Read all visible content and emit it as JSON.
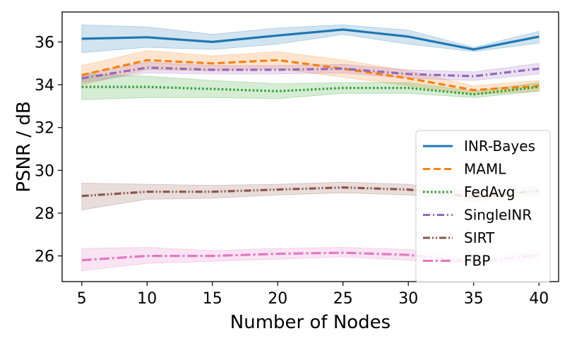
{
  "chart_data": {
    "type": "line",
    "title": "",
    "xlabel": "Number of Nodes",
    "ylabel": "PSNR / dB",
    "x": [
      5,
      10,
      15,
      20,
      25,
      30,
      35,
      40
    ],
    "xticks": [
      5,
      10,
      15,
      20,
      25,
      30,
      35,
      40
    ],
    "yticks": [
      26,
      28,
      30,
      32,
      34,
      36
    ],
    "xlim": [
      3.5,
      41.5
    ],
    "ylim": [
      24.8,
      37.4
    ],
    "legend_position": "center-right",
    "series": [
      {
        "name": "INR-Bayes",
        "color": "#1f77b4",
        "dash": "solid",
        "values": [
          36.15,
          36.22,
          36.0,
          36.3,
          36.58,
          36.25,
          35.65,
          36.25
        ],
        "lower": [
          35.5,
          35.75,
          35.65,
          35.9,
          36.35,
          35.9,
          35.55,
          35.95
        ],
        "upper": [
          36.8,
          36.7,
          36.35,
          36.65,
          36.8,
          36.55,
          35.75,
          36.5
        ]
      },
      {
        "name": "MAML",
        "color": "#ff7f0e",
        "dash": "dashed",
        "values": [
          34.45,
          35.15,
          35.0,
          35.15,
          34.75,
          34.3,
          33.75,
          33.95
        ],
        "lower": [
          34.0,
          34.7,
          34.65,
          34.75,
          34.35,
          33.95,
          33.55,
          33.7
        ],
        "upper": [
          34.9,
          35.6,
          35.35,
          35.55,
          35.15,
          34.65,
          33.95,
          34.2
        ]
      },
      {
        "name": "FedAvg",
        "color": "#2ca02c",
        "dash": "dotted",
        "values": [
          33.9,
          33.9,
          33.8,
          33.7,
          33.85,
          33.85,
          33.55,
          33.9
        ],
        "lower": [
          33.3,
          33.4,
          33.4,
          33.35,
          33.6,
          33.6,
          33.4,
          33.7
        ],
        "upper": [
          34.5,
          34.4,
          34.2,
          34.05,
          34.1,
          34.1,
          33.7,
          34.1
        ]
      },
      {
        "name": "SingleINR",
        "color": "#9467bd",
        "dash": "dashdot",
        "values": [
          34.3,
          34.8,
          34.7,
          34.7,
          34.75,
          34.5,
          34.4,
          34.75
        ],
        "lower": [
          34.1,
          34.55,
          34.5,
          34.5,
          34.55,
          34.3,
          34.2,
          34.5
        ],
        "upper": [
          34.5,
          35.05,
          34.9,
          34.9,
          34.95,
          34.7,
          34.6,
          35.0
        ]
      },
      {
        "name": "SIRT",
        "color": "#8c564b",
        "dash": "dashdotdot",
        "values": [
          28.8,
          29.0,
          29.0,
          29.1,
          29.2,
          29.1,
          28.75,
          29.05
        ],
        "lower": [
          28.15,
          28.65,
          28.7,
          28.85,
          28.95,
          28.85,
          28.55,
          28.85
        ],
        "upper": [
          29.4,
          29.35,
          29.3,
          29.35,
          29.45,
          29.35,
          28.95,
          29.25
        ]
      },
      {
        "name": "FBP",
        "color": "#e377c2",
        "dash": "longdashdot",
        "values": [
          25.8,
          26.0,
          26.0,
          26.1,
          26.15,
          26.05,
          25.7,
          26.05
        ],
        "lower": [
          25.3,
          25.65,
          25.75,
          25.85,
          25.95,
          25.8,
          25.55,
          25.85
        ],
        "upper": [
          26.35,
          26.4,
          26.25,
          26.35,
          26.4,
          26.3,
          25.85,
          26.25
        ]
      }
    ]
  }
}
